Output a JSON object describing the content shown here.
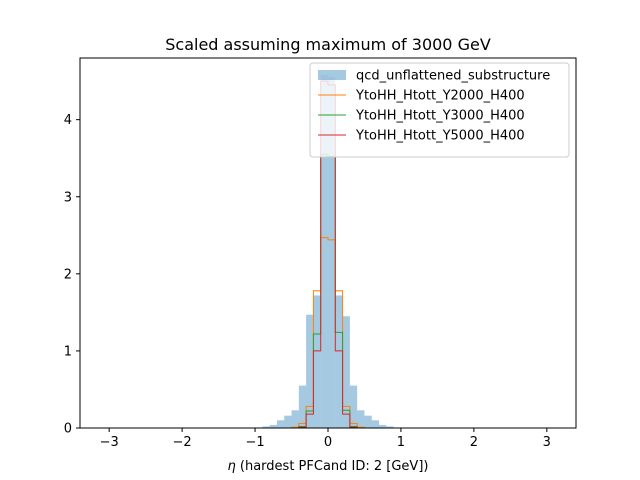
{
  "chart_data": {
    "type": "histogram",
    "title": "Scaled assuming maximum of 3000 GeV",
    "xlabel_symbol": "η",
    "xlabel_rest": " (hardest PFCand ID: 2 [GeV])",
    "xlim": [
      -3.4,
      3.4
    ],
    "ylim": [
      0,
      4.8
    ],
    "xticks": [
      "−3",
      "−2",
      "−1",
      "0",
      "1",
      "2",
      "3"
    ],
    "xtick_values": [
      -3,
      -2,
      -1,
      0,
      1,
      2,
      3
    ],
    "yticks": [
      "0",
      "1",
      "2",
      "3",
      "4"
    ],
    "ytick_values": [
      0,
      1,
      2,
      3,
      4
    ],
    "legend_position": "top-right",
    "bin_edges": [
      -3.1,
      -0.9,
      -0.8,
      -0.7,
      -0.6,
      -0.5,
      -0.4,
      -0.3,
      -0.2,
      -0.1,
      0.0,
      0.1,
      0.2,
      0.3,
      0.4,
      0.5,
      0.6,
      0.7,
      0.8,
      0.9,
      3.1
    ],
    "series": [
      {
        "name": "qcd_unflattened_substructure",
        "style": "filled",
        "color": "#1f77b4",
        "values": [
          0.0,
          0.02,
          0.04,
          0.1,
          0.16,
          0.23,
          0.55,
          1.47,
          1.72,
          4.58,
          4.55,
          1.72,
          1.45,
          0.55,
          0.23,
          0.16,
          0.1,
          0.04,
          0.02,
          0.0
        ]
      },
      {
        "name": "YtoHH_Htott_Y2000_H400",
        "style": "step",
        "color": "#ff7f0e",
        "values": [
          0.0,
          0.0,
          0.0,
          0.0,
          0.0,
          0.01,
          0.06,
          0.28,
          1.78,
          2.47,
          2.44,
          1.78,
          0.28,
          0.06,
          0.01,
          0.0,
          0.0,
          0.0,
          0.0,
          0.0
        ]
      },
      {
        "name": "YtoHH_Htott_Y3000_H400",
        "style": "step",
        "color": "#2ca02c",
        "values": [
          0.0,
          0.0,
          0.0,
          0.0,
          0.0,
          0.0,
          0.02,
          0.22,
          1.22,
          3.55,
          3.52,
          1.24,
          0.23,
          0.02,
          0.0,
          0.0,
          0.0,
          0.0,
          0.0,
          0.0
        ]
      },
      {
        "name": "YtoHH_Htott_Y5000_H400",
        "style": "step",
        "color": "#d62728",
        "values": [
          0.0,
          0.0,
          0.0,
          0.0,
          0.0,
          0.0,
          0.01,
          0.18,
          1.0,
          4.5,
          4.45,
          1.0,
          0.18,
          0.01,
          0.0,
          0.0,
          0.0,
          0.0,
          0.0,
          0.0
        ]
      }
    ]
  }
}
